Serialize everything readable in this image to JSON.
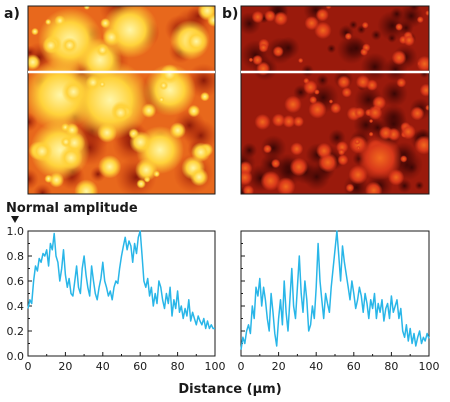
{
  "panel_labels": {
    "a": "a)",
    "b": "b)"
  },
  "y_axis_title": "Normal amplitude",
  "x_axis_title": "Distance (µm)",
  "colors": {
    "line": "#29b6e8",
    "scanline": "#ffffff",
    "axis": "#1a1a1a"
  },
  "chart_data": [
    {
      "type": "line",
      "panel": "a",
      "title": "",
      "xlabel": "Distance (µm)",
      "ylabel": "Normal amplitude",
      "xlim": [
        0,
        100
      ],
      "ylim": [
        0,
        1.0
      ],
      "x_ticks": [
        "0",
        "20",
        "40",
        "60",
        "80",
        "100"
      ],
      "y_ticks": [
        "0.0",
        "0.2",
        "0.4",
        "0.6",
        "0.8",
        "1.0"
      ],
      "grid": false,
      "series": [
        {
          "x": [
            0,
            1,
            2,
            3,
            4,
            5,
            6,
            7,
            8,
            9,
            10,
            11,
            12,
            13,
            14,
            15,
            16,
            17,
            18,
            19,
            20,
            21,
            22,
            23,
            24,
            25,
            26,
            27,
            28,
            29,
            30,
            31,
            32,
            33,
            34,
            35,
            36,
            37,
            38,
            39,
            40,
            41,
            42,
            43,
            44,
            45,
            46,
            47,
            48,
            49,
            50,
            51,
            52,
            53,
            54,
            55,
            56,
            57,
            58,
            59,
            60,
            61,
            62,
            63,
            64,
            65,
            66,
            67,
            68,
            69,
            70,
            71,
            72,
            73,
            74,
            75,
            76,
            77,
            78,
            79,
            80,
            81,
            82,
            83,
            84,
            85,
            86,
            87,
            88,
            89,
            90,
            91,
            92,
            93,
            94,
            95,
            96,
            97,
            98,
            99,
            100
          ],
          "y": [
            0.38,
            0.45,
            0.42,
            0.6,
            0.72,
            0.68,
            0.78,
            0.75,
            0.82,
            0.8,
            0.85,
            0.72,
            0.9,
            0.85,
            0.98,
            0.8,
            0.75,
            0.6,
            0.7,
            0.85,
            0.65,
            0.55,
            0.62,
            0.5,
            0.48,
            0.6,
            0.72,
            0.55,
            0.5,
            0.7,
            0.8,
            0.65,
            0.55,
            0.48,
            0.72,
            0.6,
            0.5,
            0.45,
            0.55,
            0.62,
            0.75,
            0.6,
            0.55,
            0.48,
            0.52,
            0.45,
            0.55,
            0.6,
            0.58,
            0.7,
            0.8,
            0.88,
            0.95,
            0.85,
            0.92,
            0.88,
            0.75,
            0.9,
            0.82,
            0.95,
            1.0,
            0.8,
            0.6,
            0.55,
            0.62,
            0.48,
            0.55,
            0.4,
            0.5,
            0.42,
            0.6,
            0.55,
            0.45,
            0.38,
            0.5,
            0.42,
            0.55,
            0.32,
            0.45,
            0.38,
            0.52,
            0.35,
            0.4,
            0.3,
            0.38,
            0.32,
            0.45,
            0.28,
            0.35,
            0.3,
            0.25,
            0.32,
            0.28,
            0.25,
            0.3,
            0.22,
            0.28,
            0.22,
            0.25,
            0.22,
            0.22
          ]
        }
      ]
    },
    {
      "type": "line",
      "panel": "b",
      "title": "",
      "xlabel": "Distance (µm)",
      "ylabel": "",
      "xlim": [
        0,
        100
      ],
      "ylim": [
        0,
        1.0
      ],
      "x_ticks": [
        "0",
        "20",
        "40",
        "60",
        "80",
        "100"
      ],
      "grid": false,
      "series": [
        {
          "x": [
            0,
            1,
            2,
            3,
            4,
            5,
            6,
            7,
            8,
            9,
            10,
            11,
            12,
            13,
            14,
            15,
            16,
            17,
            18,
            19,
            20,
            21,
            22,
            23,
            24,
            25,
            26,
            27,
            28,
            29,
            30,
            31,
            32,
            33,
            34,
            35,
            36,
            37,
            38,
            39,
            40,
            41,
            42,
            43,
            44,
            45,
            46,
            47,
            48,
            49,
            50,
            51,
            52,
            53,
            54,
            55,
            56,
            57,
            58,
            59,
            60,
            61,
            62,
            63,
            64,
            65,
            66,
            67,
            68,
            69,
            70,
            71,
            72,
            73,
            74,
            75,
            76,
            77,
            78,
            79,
            80,
            81,
            82,
            83,
            84,
            85,
            86,
            87,
            88,
            89,
            90,
            91,
            92,
            93,
            94,
            95,
            96,
            97,
            98,
            99,
            100
          ],
          "y": [
            0.05,
            0.15,
            0.1,
            0.2,
            0.25,
            0.18,
            0.4,
            0.3,
            0.55,
            0.48,
            0.62,
            0.4,
            0.55,
            0.45,
            0.3,
            0.2,
            0.5,
            0.35,
            0.18,
            0.08,
            0.3,
            0.45,
            0.25,
            0.6,
            0.35,
            0.2,
            0.45,
            0.7,
            0.4,
            0.3,
            0.55,
            0.8,
            0.5,
            0.35,
            0.6,
            0.45,
            0.2,
            0.25,
            0.4,
            0.3,
            0.55,
            0.9,
            0.6,
            0.45,
            0.3,
            0.5,
            0.42,
            0.35,
            0.55,
            0.7,
            0.85,
            1.0,
            0.8,
            0.6,
            0.88,
            0.75,
            0.65,
            0.55,
            0.45,
            0.6,
            0.5,
            0.38,
            0.45,
            0.55,
            0.48,
            0.35,
            0.5,
            0.42,
            0.3,
            0.45,
            0.38,
            0.5,
            0.3,
            0.42,
            0.35,
            0.45,
            0.28,
            0.38,
            0.42,
            0.3,
            0.48,
            0.35,
            0.4,
            0.45,
            0.3,
            0.38,
            0.2,
            0.15,
            0.25,
            0.12,
            0.22,
            0.1,
            0.18,
            0.08,
            0.15,
            0.2,
            0.1,
            0.15,
            0.12,
            0.18,
            0.14
          ]
        }
      ]
    }
  ]
}
